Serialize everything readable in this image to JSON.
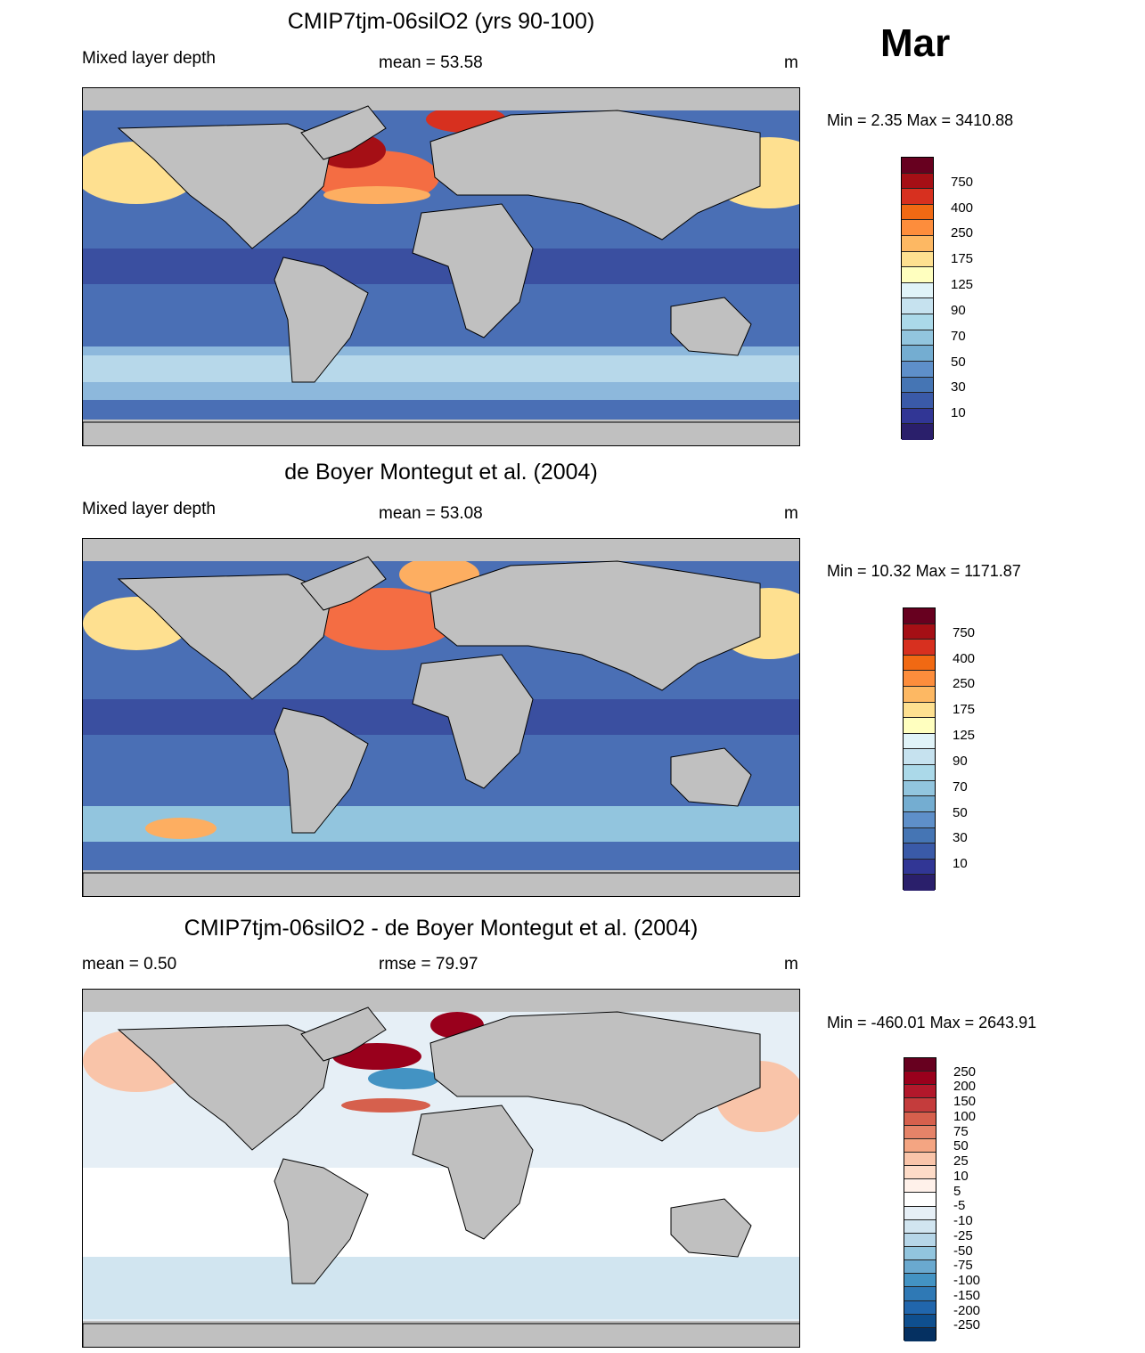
{
  "month": "Mar",
  "panels": [
    {
      "title": "CMIP7tjm-06silO2 (yrs 90-100)",
      "left_label": "Mixed layer depth",
      "center_label": "mean =  53.58",
      "unit": "m",
      "minmax": "Min =   2.35 Max = 3410.88",
      "colorbar": {
        "labels": [
          "750",
          "400",
          "250",
          "175",
          "125",
          "90",
          "70",
          "50",
          "30",
          "10"
        ],
        "colors": [
          "#67001f",
          "#a50f15",
          "#d7301f",
          "#f16913",
          "#fd8d3c",
          "#fdb863",
          "#fee090",
          "#ffffbf",
          "#e0f3f8",
          "#c6e2ef",
          "#abd9e9",
          "#92c5de",
          "#74add1",
          "#5e8fc9",
          "#4575b4",
          "#3a5aa8",
          "#313695",
          "#2a1f6b"
        ]
      }
    },
    {
      "title": "de Boyer Montegut et al. (2004)",
      "left_label": "Mixed layer depth",
      "center_label": "mean =  53.08",
      "unit": "m",
      "minmax": "Min =  10.32 Max = 1171.87",
      "colorbar": {
        "labels": [
          "750",
          "400",
          "250",
          "175",
          "125",
          "90",
          "70",
          "50",
          "30",
          "10"
        ],
        "colors": [
          "#67001f",
          "#a50f15",
          "#d7301f",
          "#f16913",
          "#fd8d3c",
          "#fdb863",
          "#fee090",
          "#ffffbf",
          "#e0f3f8",
          "#c6e2ef",
          "#abd9e9",
          "#92c5de",
          "#74add1",
          "#5e8fc9",
          "#4575b4",
          "#3a5aa8",
          "#313695",
          "#2a1f6b"
        ]
      }
    },
    {
      "title": "CMIP7tjm-06silO2 - de Boyer Montegut et al. (2004)",
      "left_label": "mean =   0.50",
      "center_label": "rmse =  79.97",
      "unit": "m",
      "minmax": "Min = -460.01 Max = 2643.91",
      "colorbar": {
        "labels": [
          "250",
          "200",
          "150",
          "100",
          "75",
          "50",
          "25",
          "10",
          "5",
          "-5",
          "-10",
          "-25",
          "-50",
          "-75",
          "-100",
          "-150",
          "-200",
          "-250"
        ],
        "colors": [
          "#67001f",
          "#99001c",
          "#b2182b",
          "#c43c3c",
          "#d6604d",
          "#e58368",
          "#f4a582",
          "#f9c4a9",
          "#fddbc7",
          "#fff1ea",
          "#ffffff",
          "#e6eff6",
          "#d1e5f0",
          "#b6d6e8",
          "#92c5de",
          "#6aa9cf",
          "#4393c3",
          "#2f79b5",
          "#2166ac",
          "#0f4f8e",
          "#053061"
        ]
      }
    }
  ]
}
